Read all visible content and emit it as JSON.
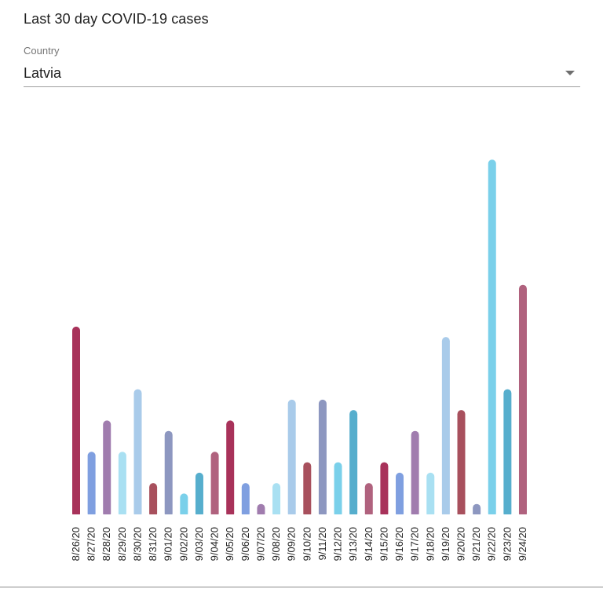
{
  "card": {
    "title": "Last 30 day COVID-19 cases"
  },
  "country_select": {
    "label": "Country",
    "value": "Latvia"
  },
  "chart_data": {
    "type": "bar",
    "title": "",
    "xlabel": "",
    "ylabel": "",
    "categories": [
      "8/26/20",
      "8/27/20",
      "8/28/20",
      "8/29/20",
      "8/30/20",
      "8/31/20",
      "9/01/20",
      "9/02/20",
      "9/03/20",
      "9/04/20",
      "9/05/20",
      "9/06/20",
      "9/07/20",
      "9/08/20",
      "9/09/20",
      "9/10/20",
      "9/11/20",
      "9/12/20",
      "9/13/20",
      "9/14/20",
      "9/15/20",
      "9/16/20",
      "9/17/20",
      "9/18/20",
      "9/19/20",
      "9/20/20",
      "9/21/20",
      "9/22/20",
      "9/23/20",
      "9/24/20"
    ],
    "values": [
      18,
      6,
      9,
      6,
      12,
      3,
      8,
      2,
      4,
      6,
      9,
      3,
      1,
      3,
      11,
      5,
      11,
      5,
      10,
      3,
      5,
      4,
      8,
      4,
      17,
      10,
      1,
      34,
      12,
      22
    ],
    "colors": [
      "#a8325a",
      "#7f9fe0",
      "#a07cae",
      "#a9e0f2",
      "#a9cbea",
      "#a8505d",
      "#8d97c0",
      "#7ad0ea",
      "#56aecd",
      "#b0627e",
      "#a8325a",
      "#7f9fe0",
      "#a07cae",
      "#a9e0f2",
      "#a9cbea",
      "#a8505d",
      "#8d97c0",
      "#7ad0ea",
      "#56aecd",
      "#b0627e",
      "#a8325a",
      "#7f9fe0",
      "#a07cae",
      "#a9e0f2",
      "#a9cbea",
      "#a8505d",
      "#8d97c0",
      "#7ad0ea",
      "#56aecd",
      "#b0627e"
    ],
    "ylim": [
      0,
      35
    ],
    "grid": false,
    "legend": "none"
  }
}
